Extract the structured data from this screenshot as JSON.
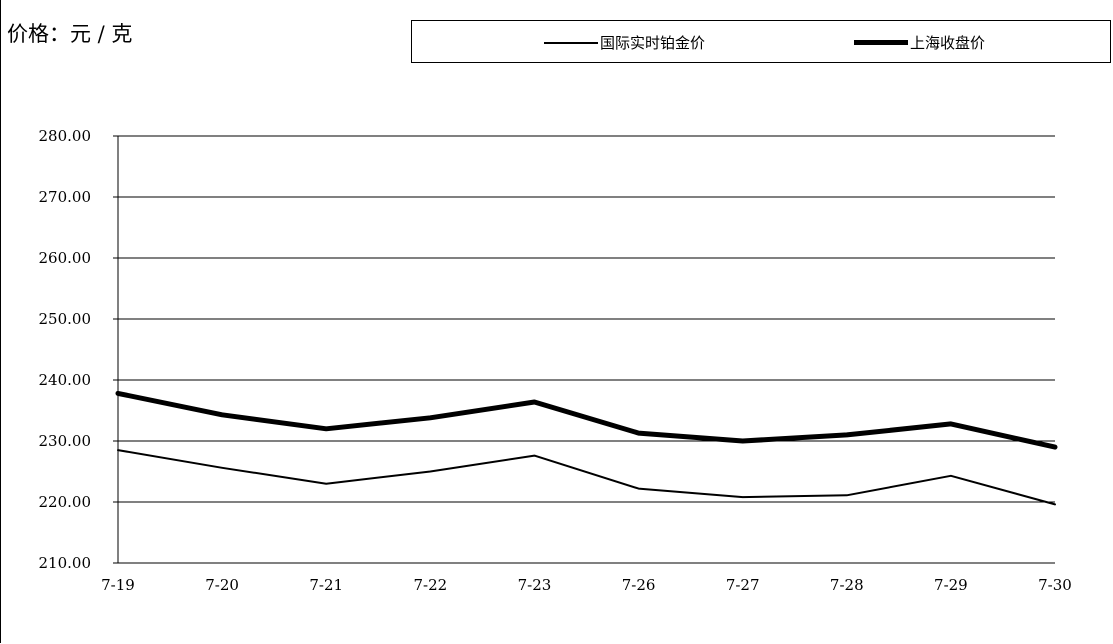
{
  "unit_label": "价格：元 / 克",
  "legend": {
    "intl": "国际实时铂金价",
    "sh": "上海收盘价"
  },
  "colors": {
    "line": "#000000",
    "grid": "#000000",
    "background": "#ffffff"
  },
  "chart_data": {
    "type": "line",
    "title": "",
    "xlabel": "",
    "ylabel": "价格：元 / 克",
    "categories": [
      "7-19",
      "7-20",
      "7-21",
      "7-22",
      "7-23",
      "7-26",
      "7-27",
      "7-28",
      "7-29",
      "7-30"
    ],
    "ylim": [
      210,
      280
    ],
    "yticks": [
      "210.00",
      "220.00",
      "230.00",
      "240.00",
      "250.00",
      "260.00",
      "270.00",
      "280.00"
    ],
    "grid": true,
    "legend_position": "top",
    "series": [
      {
        "name": "国际实时铂金价",
        "key": "intl",
        "values": [
          228.5,
          225.6,
          223.0,
          225.0,
          227.6,
          222.2,
          220.8,
          221.1,
          224.3,
          219.6
        ]
      },
      {
        "name": "上海收盘价",
        "key": "sh",
        "values": [
          237.8,
          234.3,
          232.0,
          233.8,
          236.4,
          231.3,
          230.0,
          231.0,
          232.8,
          229.0
        ]
      }
    ]
  }
}
